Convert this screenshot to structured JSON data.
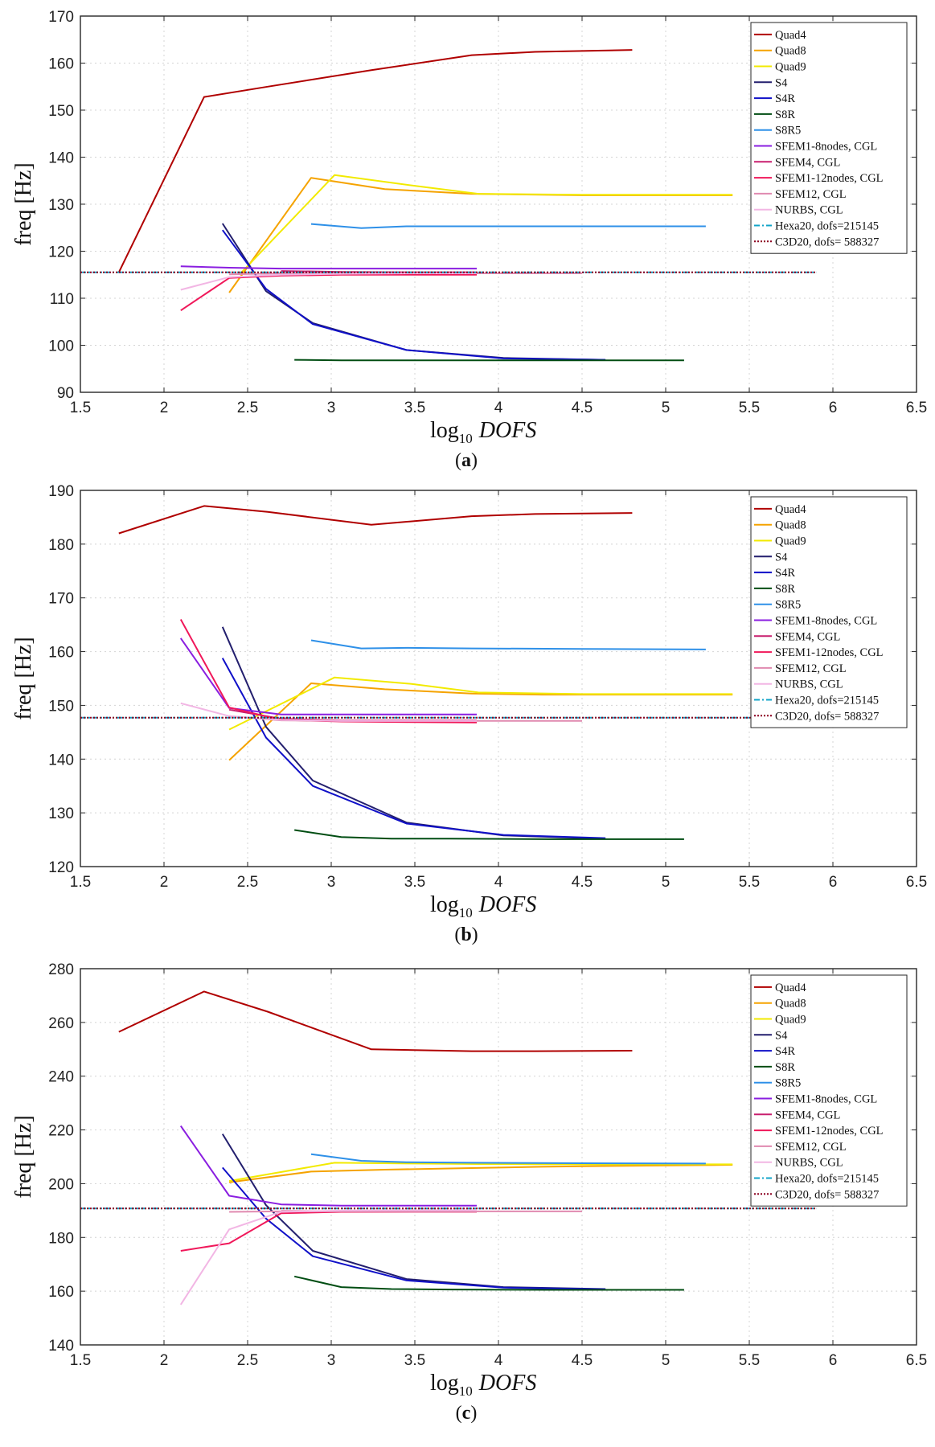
{
  "chart_data": [
    {
      "type": "line",
      "panel_label": "a",
      "xlabel": "DOFS",
      "xlabel_prefix": "log",
      "xlabel_subscript": "10",
      "ylabel": "freq [Hz]",
      "xlim": [
        1.5,
        6.5
      ],
      "ylim": [
        90,
        170
      ],
      "xticks": [
        "1.5",
        "2",
        "2.5",
        "3",
        "3.5",
        "4",
        "4.5",
        "5",
        "5.5",
        "6",
        "6.5"
      ],
      "yticks": [
        "90",
        "100",
        "110",
        "120",
        "130",
        "140",
        "150",
        "160",
        "170"
      ],
      "grid": true,
      "legend_position": "top-right",
      "series": [
        {
          "name": "Quad4",
          "color": "#b00000",
          "dash": "solid",
          "x": [
            1.73,
            2.24,
            2.62,
            3.24,
            3.84,
            4.22,
            4.8
          ],
          "y": [
            115.5,
            152.8,
            155.0,
            158.5,
            161.7,
            162.4,
            162.8
          ]
        },
        {
          "name": "Quad8",
          "color": "#f5a300",
          "dash": "solid",
          "x": [
            2.39,
            2.88,
            3.32,
            3.84,
            4.26,
            4.5,
            5.4
          ],
          "y": [
            111.2,
            135.6,
            133.2,
            132.2,
            132.0,
            131.9,
            131.9
          ]
        },
        {
          "name": "Quad9",
          "color": "#f2ea00",
          "dash": "solid",
          "x": [
            2.45,
            3.02,
            3.48,
            3.88,
            4.5,
            5.4
          ],
          "y": [
            115.0,
            136.2,
            134.0,
            132.2,
            132.0,
            132.0
          ]
        },
        {
          "name": "S4",
          "color": "#231f6e",
          "dash": "solid",
          "x": [
            2.35,
            2.61,
            2.89,
            3.45,
            4.03,
            4.64
          ],
          "y": [
            125.9,
            111.5,
            104.7,
            99.0,
            97.3,
            96.9
          ]
        },
        {
          "name": "S4R",
          "color": "#1010c8",
          "dash": "solid",
          "x": [
            2.35,
            2.61,
            2.89,
            3.45,
            4.03,
            4.64
          ],
          "y": [
            124.5,
            112.0,
            104.5,
            99.0,
            97.2,
            96.9
          ]
        },
        {
          "name": "S8R",
          "color": "#004d12",
          "dash": "solid",
          "x": [
            2.78,
            3.06,
            3.36,
            3.71,
            4.3,
            5.11
          ],
          "y": [
            96.9,
            96.8,
            96.8,
            96.8,
            96.8,
            96.8
          ]
        },
        {
          "name": "S8R5",
          "color": "#2e90e8",
          "dash": "solid",
          "x": [
            2.88,
            3.18,
            3.45,
            3.84,
            4.5,
            5.24
          ],
          "y": [
            125.8,
            124.9,
            125.3,
            125.3,
            125.3,
            125.3
          ]
        },
        {
          "name": "SFEM1-8nodes, CGL",
          "color": "#8a1ee0",
          "dash": "solid",
          "x": [
            2.1,
            2.39,
            2.7,
            3.06,
            3.87
          ],
          "y": [
            116.8,
            116.5,
            116.3,
            116.3,
            116.3
          ]
        },
        {
          "name": "SFEM4, CGL",
          "color": "#c81e6e",
          "dash": "solid",
          "x": [
            2.7,
            3.06,
            3.47,
            3.87
          ],
          "y": [
            115.8,
            115.6,
            115.5,
            115.5
          ]
        },
        {
          "name": "SFEM1-12nodes, CGL",
          "color": "#f0185a",
          "dash": "solid",
          "x": [
            2.1,
            2.39,
            2.7,
            3.06,
            3.47,
            3.87
          ],
          "y": [
            107.4,
            114.3,
            114.8,
            115.0,
            115.0,
            115.0
          ]
        },
        {
          "name": "SFEM12, CGL",
          "color": "#e08ab0",
          "dash": "solid",
          "x": [
            2.39,
            2.7,
            3.06,
            3.47,
            3.87,
            4.5
          ],
          "y": [
            115.1,
            115.3,
            115.3,
            115.3,
            115.3,
            115.3
          ]
        },
        {
          "name": "NURBS, CGL",
          "color": "#f2b6e4",
          "dash": "solid",
          "x": [
            2.1,
            2.39,
            2.7,
            3.06,
            3.47,
            3.87
          ],
          "y": [
            111.8,
            114.5,
            115.0,
            115.2,
            115.3,
            115.3
          ]
        },
        {
          "name": "Hexa20, dofs=215145",
          "color": "#12a4c8",
          "dash": "dashdot",
          "x": [
            1.5,
            5.9
          ],
          "y": [
            115.5,
            115.5
          ]
        },
        {
          "name": "C3D20, dofs= 588327",
          "color": "#8c0020",
          "dash": "dotted",
          "x": [
            1.5,
            5.9
          ],
          "y": [
            115.5,
            115.5
          ]
        }
      ]
    },
    {
      "type": "line",
      "panel_label": "b",
      "xlabel": "DOFS",
      "xlabel_prefix": "log",
      "xlabel_subscript": "10",
      "ylabel": "freq [Hz]",
      "xlim": [
        1.5,
        6.5
      ],
      "ylim": [
        120,
        190
      ],
      "xticks": [
        "1.5",
        "2",
        "2.5",
        "3",
        "3.5",
        "4",
        "4.5",
        "5",
        "5.5",
        "6",
        "6.5"
      ],
      "yticks": [
        "120",
        "130",
        "140",
        "150",
        "160",
        "170",
        "180",
        "190"
      ],
      "grid": true,
      "legend_position": "top-right",
      "series": [
        {
          "name": "Quad4",
          "color": "#b00000",
          "dash": "solid",
          "x": [
            1.73,
            2.24,
            2.62,
            3.24,
            3.84,
            4.22,
            4.8
          ],
          "y": [
            182.0,
            187.1,
            186.0,
            183.6,
            185.2,
            185.6,
            185.8
          ]
        },
        {
          "name": "Quad8",
          "color": "#f5a300",
          "dash": "solid",
          "x": [
            2.39,
            2.88,
            3.32,
            3.84,
            4.26,
            4.5,
            5.4
          ],
          "y": [
            139.8,
            154.1,
            153.0,
            152.2,
            152.0,
            152.0,
            152.0
          ]
        },
        {
          "name": "Quad9",
          "color": "#f2ea00",
          "dash": "solid",
          "x": [
            2.39,
            3.02,
            3.48,
            3.88,
            4.5,
            5.4
          ],
          "y": [
            145.5,
            155.2,
            154.0,
            152.4,
            152.1,
            152.1
          ]
        },
        {
          "name": "S4",
          "color": "#231f6e",
          "dash": "solid",
          "x": [
            2.35,
            2.61,
            2.89,
            3.45,
            4.03,
            4.64
          ],
          "y": [
            164.6,
            146.0,
            136.0,
            128.2,
            125.8,
            125.2
          ]
        },
        {
          "name": "S4R",
          "color": "#1010c8",
          "dash": "solid",
          "x": [
            2.35,
            2.61,
            2.89,
            3.45,
            4.03,
            4.64
          ],
          "y": [
            158.8,
            144.0,
            135.0,
            128.0,
            125.9,
            125.3
          ]
        },
        {
          "name": "S8R",
          "color": "#004d12",
          "dash": "solid",
          "x": [
            2.78,
            3.06,
            3.36,
            3.71,
            4.3,
            5.11
          ],
          "y": [
            126.8,
            125.5,
            125.2,
            125.2,
            125.1,
            125.1
          ]
        },
        {
          "name": "S8R5",
          "color": "#2e90e8",
          "dash": "solid",
          "x": [
            2.88,
            3.18,
            3.45,
            3.84,
            4.5,
            5.24
          ],
          "y": [
            162.1,
            160.6,
            160.7,
            160.6,
            160.5,
            160.4
          ]
        },
        {
          "name": "SFEM1-8nodes, CGL",
          "color": "#8a1ee0",
          "dash": "solid",
          "x": [
            2.1,
            2.39,
            2.7,
            3.06,
            3.87
          ],
          "y": [
            162.5,
            149.5,
            148.3,
            148.3,
            148.3
          ]
        },
        {
          "name": "SFEM4, CGL",
          "color": "#c81e6e",
          "dash": "solid",
          "x": [
            2.39,
            2.7,
            3.06,
            3.47,
            3.87
          ],
          "y": [
            149.2,
            147.5,
            147.2,
            147.2,
            147.2
          ]
        },
        {
          "name": "SFEM1-12nodes, CGL",
          "color": "#f0185a",
          "dash": "solid",
          "x": [
            2.1,
            2.39,
            2.7,
            3.06,
            3.47,
            3.87
          ],
          "y": [
            166.0,
            149.6,
            147.3,
            147.0,
            146.9,
            146.8
          ]
        },
        {
          "name": "SFEM12, CGL",
          "color": "#e08ab0",
          "dash": "solid",
          "x": [
            2.39,
            2.7,
            3.06,
            3.47,
            3.87,
            4.5
          ],
          "y": [
            148.0,
            147.2,
            147.1,
            147.1,
            147.1,
            147.1
          ]
        },
        {
          "name": "NURBS, CGL",
          "color": "#f2b6e4",
          "dash": "solid",
          "x": [
            2.1,
            2.39,
            2.7,
            3.06,
            3.47,
            3.87
          ],
          "y": [
            150.4,
            148.0,
            147.3,
            147.1,
            147.1,
            147.1
          ]
        },
        {
          "name": "Hexa20, dofs=215145",
          "color": "#12a4c8",
          "dash": "dashdot",
          "x": [
            1.5,
            5.9
          ],
          "y": [
            147.7,
            147.7
          ]
        },
        {
          "name": "C3D20, dofs= 588327",
          "color": "#8c0020",
          "dash": "dotted",
          "x": [
            1.5,
            5.9
          ],
          "y": [
            147.7,
            147.7
          ]
        }
      ]
    },
    {
      "type": "line",
      "panel_label": "c",
      "xlabel": "DOFS",
      "xlabel_prefix": "log",
      "xlabel_subscript": "10",
      "ylabel": "freq [Hz]",
      "xlim": [
        1.5,
        6.5
      ],
      "ylim": [
        140,
        280
      ],
      "xticks": [
        "1.5",
        "2",
        "2.5",
        "3",
        "3.5",
        "4",
        "4.5",
        "5",
        "5.5",
        "6",
        "6.5"
      ],
      "yticks": [
        "140",
        "160",
        "180",
        "200",
        "220",
        "240",
        "260",
        "280"
      ],
      "grid": true,
      "legend_position": "top-right",
      "series": [
        {
          "name": "Quad4",
          "color": "#b00000",
          "dash": "solid",
          "x": [
            1.73,
            2.24,
            2.62,
            3.24,
            3.84,
            4.22,
            4.8
          ],
          "y": [
            256.5,
            271.5,
            264.0,
            250.0,
            249.3,
            249.3,
            249.5
          ]
        },
        {
          "name": "Quad8",
          "color": "#f5a300",
          "dash": "solid",
          "x": [
            2.39,
            2.88,
            3.32,
            3.84,
            4.26,
            4.5,
            5.4
          ],
          "y": [
            200.5,
            204.5,
            205.2,
            205.8,
            206.3,
            206.5,
            207.0
          ]
        },
        {
          "name": "Quad9",
          "color": "#f2ea00",
          "dash": "solid",
          "x": [
            2.39,
            3.02,
            3.48,
            3.88,
            4.5,
            5.4
          ],
          "y": [
            201.0,
            207.8,
            207.5,
            207.3,
            207.2,
            207.2
          ]
        },
        {
          "name": "S4",
          "color": "#231f6e",
          "dash": "solid",
          "x": [
            2.35,
            2.61,
            2.89,
            3.45,
            4.03,
            4.64
          ],
          "y": [
            218.5,
            192.0,
            175.0,
            164.5,
            161.5,
            160.8
          ]
        },
        {
          "name": "S4R",
          "color": "#1010c8",
          "dash": "solid",
          "x": [
            2.35,
            2.61,
            2.89,
            3.45,
            4.03,
            4.64
          ],
          "y": [
            206.0,
            187.0,
            173.0,
            164.0,
            161.3,
            160.7
          ]
        },
        {
          "name": "S8R",
          "color": "#004d12",
          "dash": "solid",
          "x": [
            2.78,
            3.06,
            3.36,
            3.71,
            4.3,
            5.11
          ],
          "y": [
            165.5,
            161.5,
            160.8,
            160.6,
            160.5,
            160.5
          ]
        },
        {
          "name": "S8R5",
          "color": "#2e90e8",
          "dash": "solid",
          "x": [
            2.88,
            3.18,
            3.45,
            3.84,
            4.5,
            5.24
          ],
          "y": [
            211.0,
            208.5,
            208.0,
            207.8,
            207.6,
            207.5
          ]
        },
        {
          "name": "SFEM1-8nodes, CGL",
          "color": "#8a1ee0",
          "dash": "solid",
          "x": [
            2.1,
            2.39,
            2.7,
            3.06,
            3.87
          ],
          "y": [
            221.5,
            195.5,
            192.3,
            191.8,
            191.8
          ]
        },
        {
          "name": "SFEM4, CGL",
          "color": "#c81e6e",
          "dash": "solid",
          "x": [
            2.7,
            3.06,
            3.47,
            3.87
          ],
          "y": [
            189.8,
            189.6,
            189.6,
            189.6
          ]
        },
        {
          "name": "SFEM1-12nodes, CGL",
          "color": "#f0185a",
          "dash": "solid",
          "x": [
            2.1,
            2.39,
            2.7,
            3.06,
            3.47,
            3.87
          ],
          "y": [
            175.0,
            177.8,
            189.0,
            189.5,
            189.6,
            189.6
          ]
        },
        {
          "name": "SFEM12, CGL",
          "color": "#e08ab0",
          "dash": "solid",
          "x": [
            2.39,
            2.7,
            3.06,
            3.47,
            3.87,
            4.5
          ],
          "y": [
            189.5,
            189.7,
            189.7,
            189.7,
            189.7,
            189.7
          ]
        },
        {
          "name": "NURBS, CGL",
          "color": "#f2b6e4",
          "dash": "solid",
          "x": [
            2.1,
            2.39,
            2.7,
            3.06,
            3.47,
            3.87
          ],
          "y": [
            155.0,
            183.0,
            189.5,
            190.0,
            190.1,
            190.1
          ]
        },
        {
          "name": "Hexa20, dofs=215145",
          "color": "#12a4c8",
          "dash": "dashdot",
          "x": [
            1.5,
            5.9
          ],
          "y": [
            190.8,
            190.8
          ]
        },
        {
          "name": "C3D20, dofs= 588327",
          "color": "#8c0020",
          "dash": "dotted",
          "x": [
            1.5,
            5.9
          ],
          "y": [
            190.8,
            190.8
          ]
        }
      ]
    }
  ]
}
